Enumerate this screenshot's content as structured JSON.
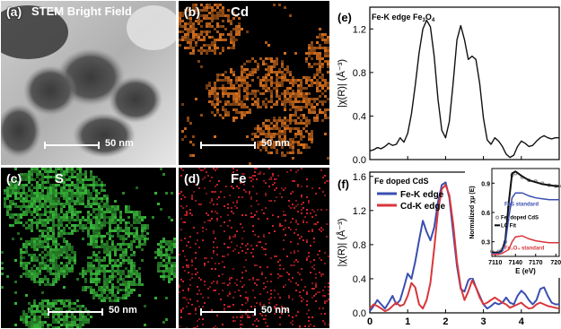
{
  "panels": {
    "a": {
      "label": "(a)",
      "title": "STEM Bright Field",
      "scale": "50 nm"
    },
    "b": {
      "label": "(b)",
      "title": "Cd",
      "scale": "50 nm",
      "color": "#d7701f"
    },
    "c": {
      "label": "(c)",
      "title": "S",
      "scale": "50 nm",
      "color": "#38b83a"
    },
    "d": {
      "label": "(d)",
      "title": "Fe",
      "scale": "50 nm",
      "color": "#d8242a"
    }
  },
  "chart_data": [
    {
      "type": "line",
      "panel_label": "(e)",
      "annotation": "Fe-K edge Fe",
      "annotation_sub": "3",
      "annotation_mid": "O",
      "annotation_sub2": "4",
      "ylabel": "|χ(R)| (Å⁻³)",
      "ylim": [
        0,
        1.4
      ],
      "xlim": [
        0,
        5
      ],
      "yticks": [
        "0.0",
        "0.4",
        "0.8",
        "1.2"
      ],
      "series": [
        {
          "color": "#111111",
          "x": [
            0.0,
            0.1,
            0.2,
            0.3,
            0.4,
            0.5,
            0.6,
            0.7,
            0.8,
            0.9,
            1.0,
            1.1,
            1.2,
            1.3,
            1.4,
            1.5,
            1.6,
            1.7,
            1.8,
            1.9,
            2.0,
            2.1,
            2.2,
            2.3,
            2.4,
            2.5,
            2.6,
            2.7,
            2.8,
            2.9,
            3.0,
            3.1,
            3.2,
            3.3,
            3.4,
            3.5,
            3.6,
            3.7,
            3.8,
            3.9,
            4.0,
            4.1,
            4.2,
            4.3,
            4.4,
            4.5,
            4.6,
            4.7,
            4.8,
            4.9,
            5.0
          ],
          "y": [
            0.08,
            0.09,
            0.11,
            0.1,
            0.12,
            0.15,
            0.13,
            0.14,
            0.2,
            0.16,
            0.24,
            0.42,
            0.68,
            0.98,
            1.2,
            1.28,
            1.22,
            0.95,
            0.55,
            0.27,
            0.2,
            0.35,
            0.7,
            1.1,
            1.23,
            1.1,
            0.92,
            0.95,
            0.92,
            0.7,
            0.38,
            0.18,
            0.14,
            0.2,
            0.17,
            0.12,
            0.05,
            0.02,
            0.04,
            0.12,
            0.17,
            0.15,
            0.12,
            0.13,
            0.17,
            0.2,
            0.22,
            0.2,
            0.19,
            0.2,
            0.2
          ]
        }
      ]
    },
    {
      "type": "line",
      "panel_label": "(f)",
      "annotation": "Fe doped CdS",
      "ylabel": "|χ(R)| (Å⁻³)",
      "ylim": [
        0,
        1.65
      ],
      "xlim": [
        0,
        5
      ],
      "yticks": [
        "0.0",
        "0.4",
        "0.8",
        "1.2",
        "1.6"
      ],
      "xticks": [
        "0",
        "1",
        "2",
        "3",
        "4"
      ],
      "legend_placement": "top-left",
      "series": [
        {
          "name": "Fe-K edge",
          "color": "#3a4fb0",
          "x": [
            0.0,
            0.1,
            0.2,
            0.3,
            0.4,
            0.5,
            0.6,
            0.7,
            0.8,
            0.9,
            1.0,
            1.1,
            1.2,
            1.3,
            1.4,
            1.5,
            1.6,
            1.7,
            1.8,
            1.9,
            2.0,
            2.1,
            2.2,
            2.3,
            2.4,
            2.5,
            2.6,
            2.7,
            2.8,
            2.9,
            3.0,
            3.1,
            3.2,
            3.3,
            3.4,
            3.5,
            3.6,
            3.7,
            3.8,
            3.9,
            4.0,
            4.1,
            4.2,
            4.3,
            4.4,
            4.5,
            4.6,
            4.7,
            4.8,
            4.9,
            5.0
          ],
          "y": [
            0.02,
            0.08,
            0.15,
            0.1,
            0.05,
            0.12,
            0.2,
            0.1,
            0.15,
            0.3,
            0.46,
            0.4,
            0.6,
            0.85,
            1.08,
            0.95,
            0.85,
            1.0,
            1.3,
            1.5,
            1.53,
            1.35,
            0.95,
            0.55,
            0.28,
            0.25,
            0.38,
            0.42,
            0.3,
            0.2,
            0.1,
            0.05,
            0.08,
            0.12,
            0.1,
            0.12,
            0.18,
            0.12,
            0.1,
            0.2,
            0.26,
            0.22,
            0.15,
            0.1,
            0.15,
            0.28,
            0.3,
            0.2,
            0.12,
            0.1,
            0.1
          ]
        },
        {
          "name": "Cd-K edge",
          "color": "#d9363b",
          "x": [
            0.0,
            0.1,
            0.2,
            0.3,
            0.4,
            0.5,
            0.6,
            0.7,
            0.8,
            0.9,
            1.0,
            1.1,
            1.2,
            1.3,
            1.4,
            1.5,
            1.6,
            1.7,
            1.8,
            1.9,
            2.0,
            2.1,
            2.2,
            2.3,
            2.4,
            2.5,
            2.6,
            2.7,
            2.8,
            2.9,
            3.0,
            3.1,
            3.2,
            3.3,
            3.4,
            3.5,
            3.6,
            3.7,
            3.8,
            3.9,
            4.0,
            4.1,
            4.2,
            4.3,
            4.4,
            4.5,
            4.6,
            4.7,
            4.8,
            4.9,
            5.0
          ],
          "y": [
            0.05,
            0.1,
            0.08,
            0.05,
            0.02,
            0.04,
            0.08,
            0.12,
            0.08,
            0.1,
            0.2,
            0.35,
            0.3,
            0.1,
            0.05,
            0.15,
            0.35,
            0.75,
            1.2,
            1.45,
            1.5,
            1.38,
            1.05,
            0.6,
            0.3,
            0.15,
            0.25,
            0.38,
            0.3,
            0.18,
            0.1,
            0.12,
            0.15,
            0.18,
            0.15,
            0.12,
            0.1,
            0.06,
            0.08,
            0.1,
            0.12,
            0.08,
            0.05,
            0.06,
            0.1,
            0.12,
            0.1,
            0.08,
            0.07,
            0.06,
            0.05
          ]
        }
      ]
    },
    {
      "type": "line",
      "panel_label": "inset",
      "xlabel": "E (eV)",
      "ylabel": "Normalized χμ (E)",
      "xlim": [
        7105,
        7205
      ],
      "ylim": [
        0.15,
        1.05
      ],
      "xticks": [
        "7110",
        "7140",
        "7170",
        "720"
      ],
      "yticks": [
        "0.3",
        "0.6",
        "0.9"
      ],
      "series": [
        {
          "name": "Fe_doped CdS",
          "color": "#888888",
          "x": [
            7105,
            7115,
            7120,
            7125,
            7130,
            7135,
            7140,
            7150,
            7160,
            7170,
            7180,
            7190,
            7200,
            7205
          ],
          "y": [
            0.2,
            0.2,
            0.22,
            0.3,
            0.65,
            0.98,
            1.0,
            0.96,
            0.93,
            0.92,
            0.9,
            0.88,
            0.87,
            0.87
          ]
        },
        {
          "name": "LC Fit",
          "color": "#111111",
          "x": [
            7105,
            7115,
            7120,
            7125,
            7130,
            7135,
            7140,
            7150,
            7160,
            7170,
            7180,
            7190,
            7200,
            7205
          ],
          "y": [
            0.19,
            0.19,
            0.21,
            0.32,
            0.7,
            1.0,
            1.02,
            0.97,
            0.93,
            0.91,
            0.89,
            0.88,
            0.87,
            0.87
          ]
        },
        {
          "name": "FeS standard",
          "color": "#3a4fb0",
          "x": [
            7105,
            7115,
            7120,
            7125,
            7130,
            7135,
            7140,
            7150,
            7160,
            7170,
            7180,
            7190,
            7200,
            7205
          ],
          "y": [
            0.18,
            0.18,
            0.2,
            0.28,
            0.55,
            0.75,
            0.8,
            0.8,
            0.77,
            0.75,
            0.74,
            0.73,
            0.73,
            0.73
          ]
        },
        {
          "name": "Fe₃O₄ standard",
          "color": "#d9363b",
          "x": [
            7105,
            7115,
            7120,
            7125,
            7130,
            7135,
            7140,
            7150,
            7160,
            7170,
            7180,
            7190,
            7200,
            7205
          ],
          "y": [
            0.17,
            0.17,
            0.18,
            0.2,
            0.22,
            0.3,
            0.35,
            0.36,
            0.33,
            0.31,
            0.3,
            0.29,
            0.29,
            0.29
          ]
        }
      ]
    }
  ]
}
